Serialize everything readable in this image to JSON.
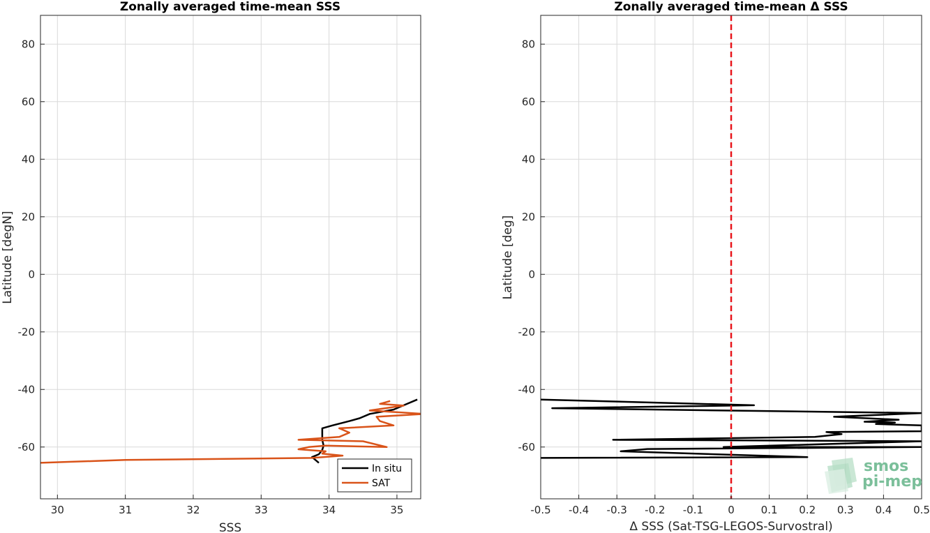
{
  "chart_data": [
    {
      "type": "line",
      "title": "Zonally averaged time-mean SSS",
      "xlabel": "SSS",
      "ylabel": "Latitude [degN]",
      "xlim": [
        29.75,
        35.35
      ],
      "ylim": [
        -78,
        90
      ],
      "xticks": [
        "30",
        "31",
        "32",
        "33",
        "34",
        "35"
      ],
      "yticks": [
        "80",
        "60",
        "40",
        "20",
        "0",
        "-20",
        "-40",
        "-60"
      ],
      "grid": true,
      "legend_position": "bottom-right",
      "series": [
        {
          "name": "In situ",
          "color": "#000000",
          "points": [
            [
              35.3,
              -43.5
            ],
            [
              35.1,
              -45.5
            ],
            [
              34.95,
              -47
            ],
            [
              34.6,
              -48.5
            ],
            [
              34.45,
              -50
            ],
            [
              34.3,
              -51
            ],
            [
              34.05,
              -52.5
            ],
            [
              33.9,
              -53.5
            ],
            [
              33.9,
              -55.5
            ],
            [
              33.9,
              -57.5
            ],
            [
              33.92,
              -59.5
            ],
            [
              33.9,
              -61
            ],
            [
              33.85,
              -62.5
            ],
            [
              33.75,
              -63.5
            ],
            [
              33.85,
              -65.5
            ]
          ]
        },
        {
          "name": "SAT",
          "color": "#d95319",
          "points": [
            [
              34.9,
              -44
            ],
            [
              34.75,
              -45
            ],
            [
              35.1,
              -45.6
            ],
            [
              34.6,
              -47.3
            ],
            [
              35.4,
              -48.5
            ],
            [
              34.7,
              -49.5
            ],
            [
              34.75,
              -51
            ],
            [
              34.95,
              -52.5
            ],
            [
              34.15,
              -53.5
            ],
            [
              34.3,
              -55
            ],
            [
              34.15,
              -56.5
            ],
            [
              33.55,
              -57.5
            ],
            [
              34.5,
              -58
            ],
            [
              34.85,
              -60
            ],
            [
              33.95,
              -59.5
            ],
            [
              33.7,
              -60
            ],
            [
              33.55,
              -60.8
            ],
            [
              33.95,
              -61.5
            ],
            [
              33.9,
              -62.3
            ],
            [
              34.2,
              -63
            ],
            [
              33.75,
              -63.8
            ],
            [
              31.0,
              -64.5
            ],
            [
              29.75,
              -65.5
            ]
          ]
        }
      ]
    },
    {
      "type": "line",
      "title": "Zonally averaged time-mean Δ SSS",
      "xlabel": "Δ SSS (Sat-TSG-LEGOS-Survostral)",
      "ylabel": "Latitude [deg]",
      "xlim": [
        -0.5,
        0.5
      ],
      "ylim": [
        -78,
        90
      ],
      "xticks": [
        "-0.5",
        "-0.4",
        "-0.3",
        "-0.2",
        "-0.1",
        "0",
        "0.1",
        "0.2",
        "0.3",
        "0.4",
        "0.5"
      ],
      "yticks": [
        "80",
        "60",
        "40",
        "20",
        "0",
        "-20",
        "-40",
        "-60"
      ],
      "grid": true,
      "reference_line": {
        "x": 0,
        "color": "#e8141a",
        "style": "dashed"
      },
      "series": [
        {
          "name": "",
          "color": "#000000",
          "points": [
            [
              -0.5,
              -43.5
            ],
            [
              0.06,
              -45.5
            ],
            [
              -0.47,
              -46.5
            ],
            [
              0.5,
              -48.2
            ],
            [
              0.27,
              -49.5
            ],
            [
              0.44,
              -50.5
            ],
            [
              0.35,
              -51.2
            ],
            [
              0.43,
              -51.5
            ],
            [
              0.38,
              -52
            ],
            [
              0.5,
              -52.5
            ],
            [
              0.5,
              -54.5
            ],
            [
              0.25,
              -54.8
            ],
            [
              0.29,
              -55.5
            ],
            [
              0.22,
              -56.5
            ],
            [
              -0.31,
              -57.5
            ],
            [
              0.5,
              -58
            ],
            [
              -0.02,
              -60
            ],
            [
              0.5,
              -60
            ],
            [
              -0.22,
              -60.7
            ],
            [
              -0.29,
              -61.5
            ],
            [
              0.2,
              -63.5
            ],
            [
              -0.5,
              -63.8
            ]
          ]
        }
      ]
    }
  ],
  "legend": {
    "items": [
      {
        "label": "In situ",
        "color": "#000000"
      },
      {
        "label": "SAT",
        "color": "#d95319"
      }
    ]
  },
  "logo": {
    "line1": "smos",
    "line2": "pi-mep",
    "icon": "wave-stack-icon",
    "color": "#7bbf9a"
  }
}
